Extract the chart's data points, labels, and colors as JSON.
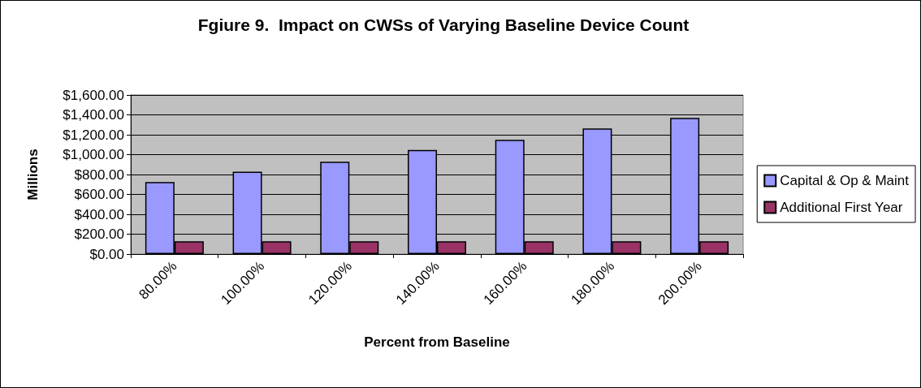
{
  "chart_data": {
    "type": "bar",
    "title": "Fgiure 9.  Impact on CWSs of Varying Baseline Device Count",
    "xlabel": "Percent from Baseline",
    "ylabel": "Millions",
    "categories": [
      "80.00%",
      "100.00%",
      "120.00%",
      "140.00%",
      "160.00%",
      "180.00%",
      "200.00%"
    ],
    "series": [
      {
        "name": "Capital & Op & Maint",
        "color": "#9999ff",
        "values": [
          725,
          829,
          929,
          1046,
          1149,
          1264,
          1370
        ]
      },
      {
        "name": "Additional First Year",
        "color": "#993366",
        "values": [
          128,
          128,
          128,
          128,
          128,
          128,
          128
        ]
      }
    ],
    "ylim": [
      0,
      1600
    ],
    "yticks": [
      {
        "value": 0,
        "label": "$0.00"
      },
      {
        "value": 200,
        "label": "$200.00"
      },
      {
        "value": 400,
        "label": "$400.00"
      },
      {
        "value": 600,
        "label": "$600.00"
      },
      {
        "value": 800,
        "label": "$800.00"
      },
      {
        "value": 1000,
        "label": "$1,000.00"
      },
      {
        "value": 1200,
        "label": "$1,200.00"
      },
      {
        "value": 1400,
        "label": "$1,400.00"
      },
      {
        "value": 1600,
        "label": "$1,600.00"
      }
    ],
    "grid": "y",
    "legend": "right"
  }
}
